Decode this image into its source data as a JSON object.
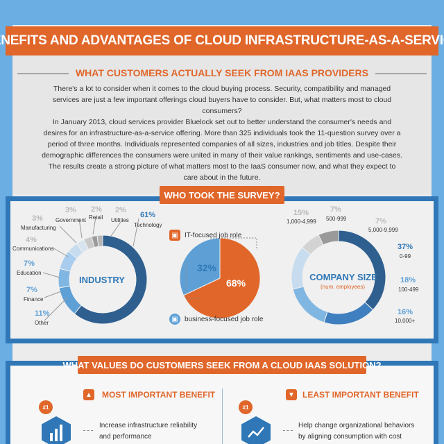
{
  "header": {
    "title": "BENEFITS AND ADVANTAGES OF CLOUD INFRASTRUCTURE-AS-A-SERVICE"
  },
  "intro": {
    "subtitle": "WHAT CUSTOMERS ACTUALLY SEEK FROM IAAS PROVIDERS",
    "para1": "There's a lot to consider when it comes to the cloud buying process. Security, compatibility and managed services are just a few important offerings cloud buyers have to consider. But, what matters most to cloud consumers?",
    "para2": "In January 2013, cloud services provider Bluelock set out to better understand the consumer's needs and desires for an infrastructure-as-a-service offering. More than 325 individuals took the 11-question survey over a period of three months. Individuals represented companies of all sizes, industries and job titles. Despite their demographic differences the consumers were united in many of their value rankings, sentiments and use-cases. The results create a strong picture of what matters most to the IaaS consumer now, and what they expect to care about in the future."
  },
  "survey": {
    "title": "WHO TOOK THE SURVEY?",
    "industry": {
      "label": "INDUSTRY",
      "segments": [
        {
          "pct": "61%",
          "name": "Technology",
          "value": 61,
          "color": "#2f5f8e"
        },
        {
          "pct": "11%",
          "name": "Other",
          "value": 11,
          "color": "#5ea0d6"
        },
        {
          "pct": "7%",
          "name": "Finance",
          "value": 7,
          "color": "#80b6e2"
        },
        {
          "pct": "7%",
          "name": "Education",
          "value": 7,
          "color": "#a8cdee"
        },
        {
          "pct": "4%",
          "name": "Communications",
          "value": 4,
          "color": "#c7dcee"
        },
        {
          "pct": "3%",
          "name": "Manufacturing",
          "value": 3,
          "color": "#d7e4ef"
        },
        {
          "pct": "3%",
          "name": "Government",
          "value": 3,
          "color": "#c9c9c9"
        },
        {
          "pct": "2%",
          "name": "Retail",
          "value": 2,
          "color": "#9a9a9a"
        },
        {
          "pct": "2%",
          "name": "Utilities",
          "value": 2,
          "color": "#b5b5b5"
        }
      ]
    },
    "roles": {
      "it_label": "IT-focused job role",
      "business_label": "business-focused job role",
      "it_pct": "68%",
      "business_pct": "32%",
      "it_value": 68,
      "business_value": 32,
      "it_color": "#e0662a",
      "business_color": "#5ea0d6"
    },
    "company": {
      "label": "COMPANY SIZE",
      "sublabel": "(num. employees)",
      "segments": [
        {
          "pct": "37%",
          "name": "0-99",
          "value": 37,
          "color": "#2f5f8e"
        },
        {
          "pct": "18%",
          "name": "100-499",
          "value": 18,
          "color": "#3f7fbf"
        },
        {
          "pct": "16%",
          "name": "10,000+",
          "value": 16,
          "color": "#80b6e2"
        },
        {
          "pct": "15%",
          "name": "1,000-4,999",
          "value": 15,
          "color": "#c7dcee"
        },
        {
          "pct": "7%",
          "name": "500-999",
          "value": 7,
          "color": "#d3d3d3"
        },
        {
          "pct": "7%",
          "name": "5,000-9,999",
          "value": 7,
          "color": "#9a9a9a"
        }
      ]
    }
  },
  "values": {
    "title": "WHAT VALUES DO CUSTOMERS SEEK FROM A CLOUD IAAS SOLUTION?",
    "most": {
      "label": "MOST IMPORTANT BENEFIT",
      "rank": "#1",
      "text": "Increase infrastructure reliability and performance"
    },
    "least": {
      "label": "LEAST IMPORTANT BENEFIT",
      "rank": "#1",
      "text": "Help change organizational behaviors by aligning consumption with cost"
    }
  }
}
